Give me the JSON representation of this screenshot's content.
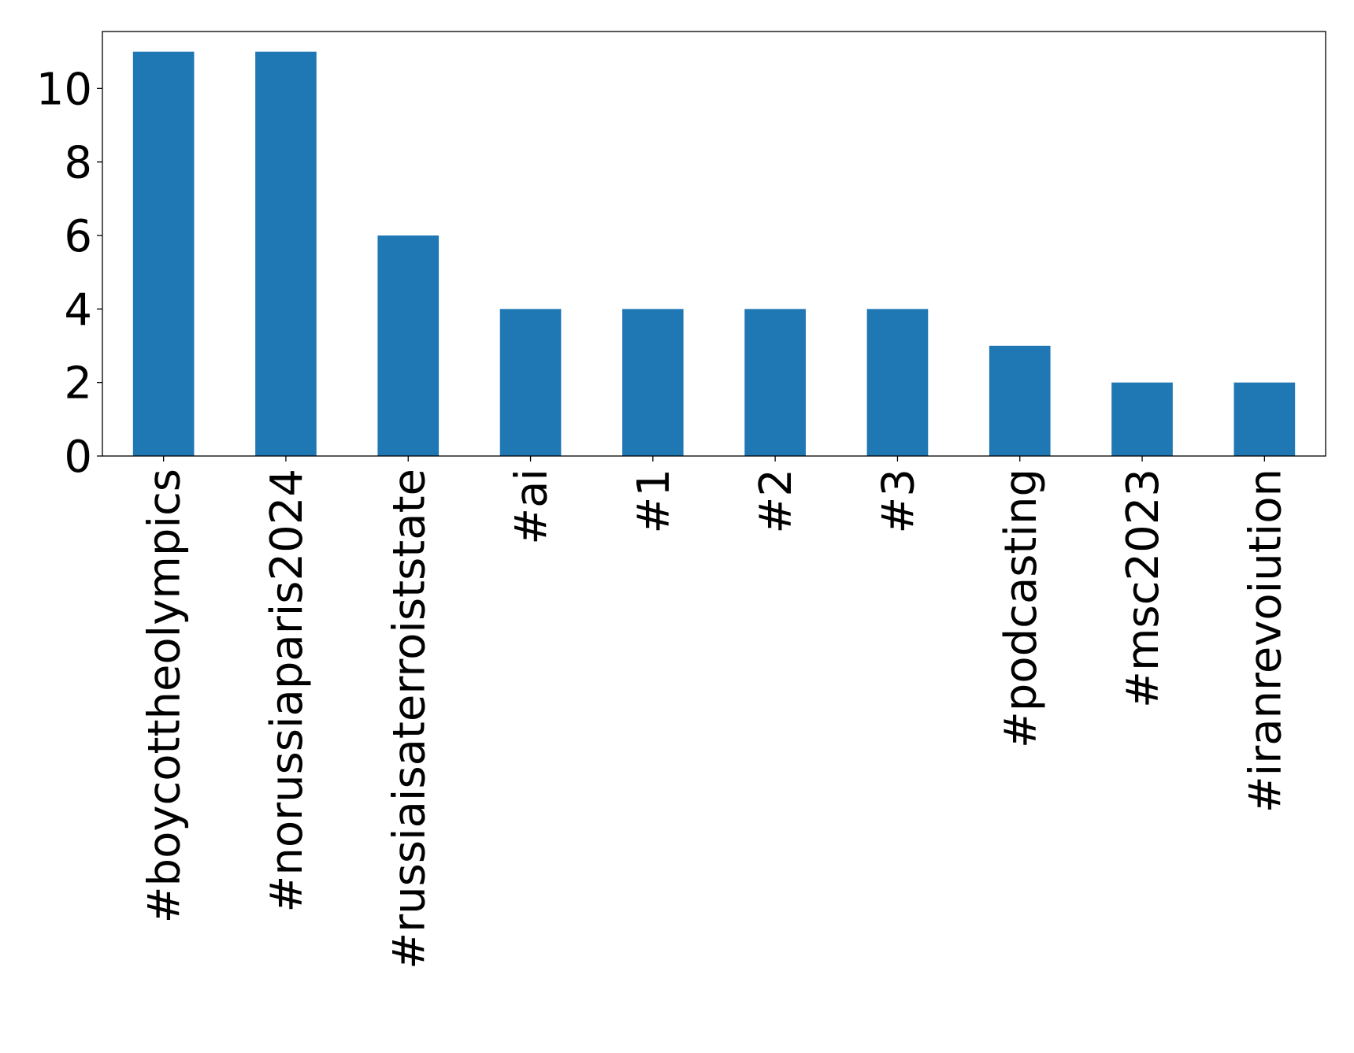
{
  "chart_data": {
    "type": "bar",
    "title": "",
    "xlabel": "",
    "ylabel": "",
    "categories": [
      "#boycottheolympics",
      "#norussiaparis2024",
      "#russiaisaterroiststate",
      "#ai",
      "#1",
      "#2",
      "#3",
      "#podcasting",
      "#msc2023",
      "#iranrevoiution"
    ],
    "values": [
      11,
      11,
      6,
      4,
      4,
      4,
      4,
      3,
      2,
      2
    ],
    "ylim": [
      0,
      11.55
    ],
    "yticks": [
      0,
      2,
      4,
      6,
      8,
      10
    ],
    "grid": false,
    "legend": "none",
    "bar_color": "#1f77b4"
  }
}
